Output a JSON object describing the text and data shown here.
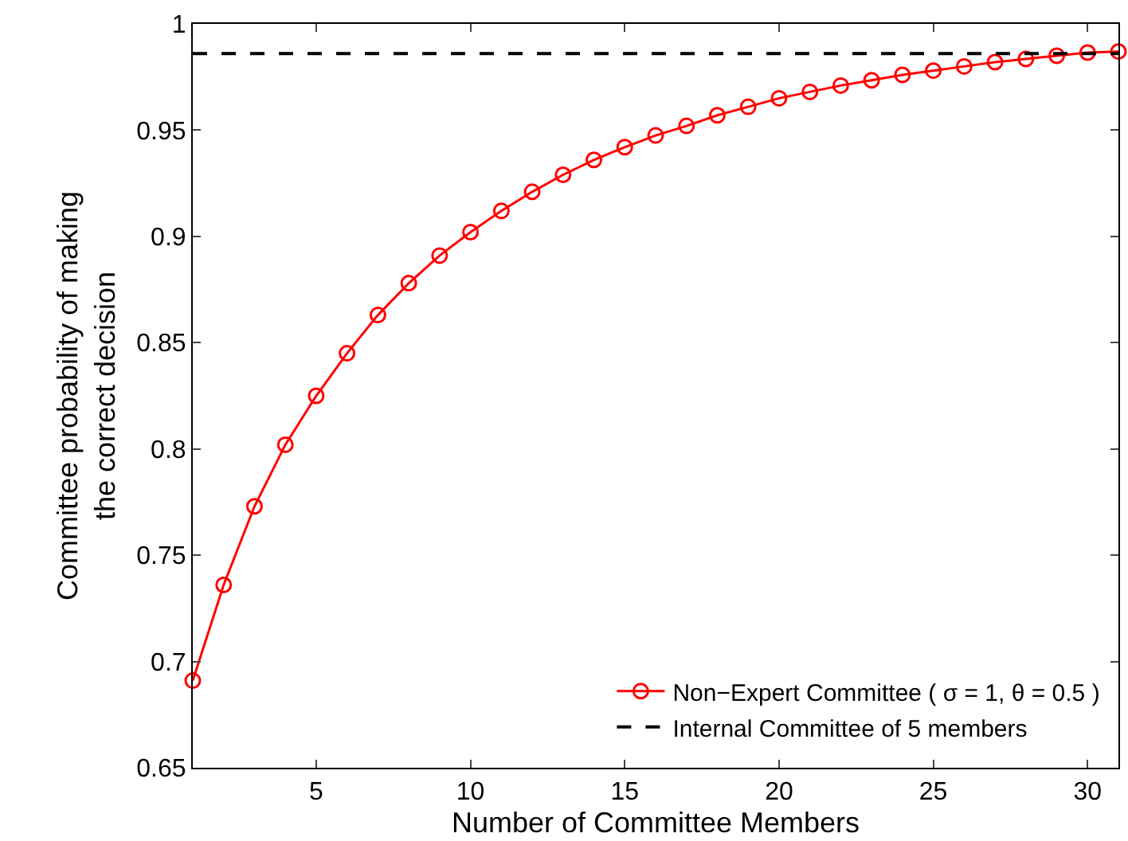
{
  "chart_data": {
    "type": "line",
    "xlabel": "Number of Committee Members",
    "ylabel": "Committee probability of making\nthe correct decision",
    "x": [
      1,
      2,
      3,
      4,
      5,
      6,
      7,
      8,
      9,
      10,
      11,
      12,
      13,
      14,
      15,
      16,
      17,
      18,
      19,
      20,
      21,
      22,
      23,
      24,
      25,
      26,
      27,
      28,
      29,
      30,
      31
    ],
    "series": [
      {
        "name": "Non−Expert Committee ( σ = 1, θ = 0.5 )",
        "color": "#ff0000",
        "marker": "circle",
        "line_style": "solid",
        "values": [
          0.691,
          0.736,
          0.773,
          0.802,
          0.825,
          0.845,
          0.863,
          0.878,
          0.891,
          0.902,
          0.912,
          0.921,
          0.929,
          0.936,
          0.942,
          0.9475,
          0.952,
          0.957,
          0.961,
          0.965,
          0.968,
          0.971,
          0.9735,
          0.976,
          0.978,
          0.98,
          0.982,
          0.9835,
          0.985,
          0.9865,
          0.987
        ]
      },
      {
        "name": "Internal Committee of 5 members",
        "color": "#000000",
        "marker": "none",
        "line_style": "dashed",
        "x": [
          1,
          31
        ],
        "values": [
          0.986,
          0.986
        ]
      }
    ],
    "xlim": [
      1,
      31
    ],
    "xticks": [
      5,
      10,
      15,
      20,
      25,
      30
    ],
    "ylim": [
      0.65,
      1
    ],
    "yticks": [
      0.65,
      0.7,
      0.75,
      0.8,
      0.85,
      0.9,
      0.95,
      1
    ],
    "legend": "bottom right"
  }
}
